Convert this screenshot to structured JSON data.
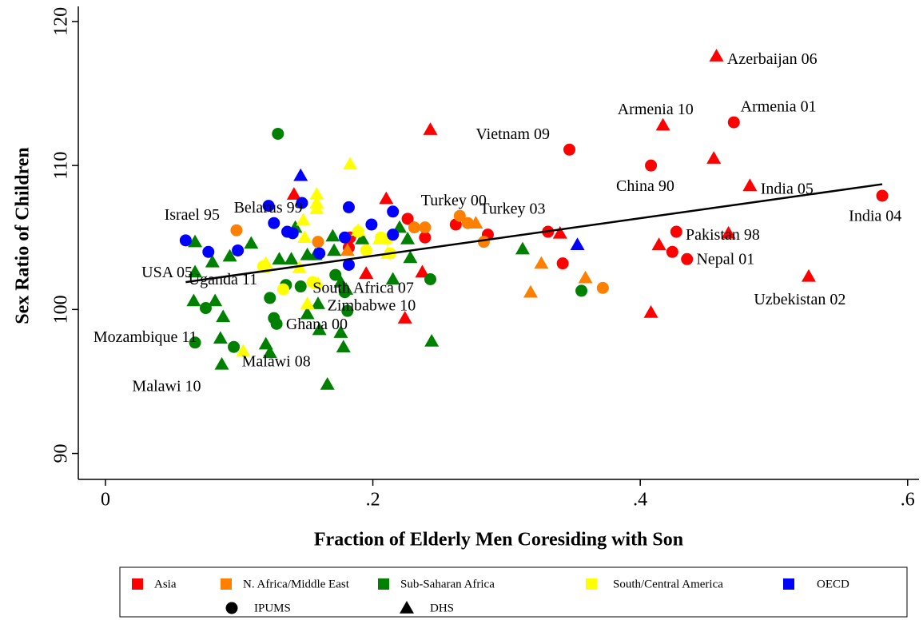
{
  "chart_data": {
    "type": "scatter",
    "xlabel": "Fraction of Elderly Men Coresiding with Son",
    "ylabel": "Sex Ratio of Children",
    "xlim": [
      -0.0203,
      0.6085
    ],
    "ylim": [
      88.2,
      121.05
    ],
    "xticks": [
      0,
      {
        "value": 0.2,
        "label": ".2"
      },
      {
        "value": 0.4,
        "label": ".4"
      },
      {
        "value": 0.6,
        "label": ".6"
      }
    ],
    "yticks": [
      90,
      100,
      110,
      120
    ],
    "markers": [
      {
        "name": "IPUMS",
        "shape": "circle"
      },
      {
        "name": "DHS",
        "shape": "triangle"
      }
    ],
    "series": [
      {
        "name": "Asia",
        "color": "#ff0000",
        "x": [
          0.457,
          0.417,
          0.455,
          0.482,
          0.243,
          0.141,
          0.21,
          0.34,
          0.414,
          0.466,
          0.526,
          0.408,
          0.237,
          0.224,
          0.195,
          0.47,
          0.408,
          0.347,
          0.581,
          0.427,
          0.424,
          0.435,
          0.342,
          0.331,
          0.286,
          0.262,
          0.239,
          0.226,
          0.182,
          0.183
        ],
        "y": [
          117.6,
          112.8,
          110.5,
          108.6,
          112.5,
          108.0,
          107.7,
          105.3,
          104.5,
          105.3,
          102.3,
          99.8,
          102.6,
          99.4,
          102.5,
          113.0,
          110.0,
          111.1,
          107.9,
          105.4,
          104.0,
          103.5,
          103.2,
          105.4,
          105.2,
          105.9,
          105.0,
          106.3,
          104.3,
          105.0
        ],
        "source": [
          "DHS",
          "DHS",
          "DHS",
          "DHS",
          "DHS",
          "DHS",
          "DHS",
          "DHS",
          "DHS",
          "DHS",
          "DHS",
          "DHS",
          "DHS",
          "DHS",
          "DHS",
          "IPUMS",
          "IPUMS",
          "IPUMS",
          "IPUMS",
          "IPUMS",
          "IPUMS",
          "IPUMS",
          "IPUMS",
          "IPUMS",
          "IPUMS",
          "IPUMS",
          "IPUMS",
          "IPUMS",
          "IPUMS",
          "IPUMS"
        ]
      },
      {
        "name": "N. Africa/Middle East",
        "color": "#ff8000",
        "x": [
          0.265,
          0.271,
          0.239,
          0.231,
          0.283,
          0.372,
          0.159,
          0.098,
          0.277,
          0.326,
          0.318,
          0.359,
          0.181
        ],
        "y": [
          106.5,
          106.0,
          105.7,
          105.7,
          104.7,
          101.5,
          104.7,
          105.5,
          106.0,
          103.2,
          101.2,
          102.2,
          104.1
        ],
        "source": [
          "IPUMS",
          "IPUMS",
          "IPUMS",
          "IPUMS",
          "IPUMS",
          "IPUMS",
          "IPUMS",
          "IPUMS",
          "DHS",
          "DHS",
          "DHS",
          "DHS",
          "DHS"
        ]
      },
      {
        "name": "Sub-Saharan Africa",
        "color": "#008000",
        "x": [
          0.129,
          0.067,
          0.075,
          0.096,
          0.123,
          0.126,
          0.128,
          0.135,
          0.146,
          0.172,
          0.181,
          0.179,
          0.243,
          0.356,
          0.067,
          0.067,
          0.066,
          0.08,
          0.082,
          0.088,
          0.086,
          0.087,
          0.093,
          0.109,
          0.12,
          0.123,
          0.13,
          0.139,
          0.151,
          0.151,
          0.157,
          0.159,
          0.16,
          0.142,
          0.17,
          0.171,
          0.176,
          0.176,
          0.178,
          0.18,
          0.166,
          0.192,
          0.215,
          0.22,
          0.226,
          0.228,
          0.244,
          0.312
        ],
        "y": [
          112.2,
          97.7,
          100.1,
          97.4,
          100.8,
          99.4,
          99.0,
          101.7,
          101.6,
          102.4,
          99.9,
          101.2,
          102.1,
          101.3,
          104.7,
          102.6,
          100.6,
          103.3,
          100.6,
          99.5,
          98.0,
          96.2,
          103.7,
          104.6,
          97.6,
          97.0,
          103.5,
          103.5,
          99.7,
          103.8,
          103.8,
          100.4,
          98.6,
          105.7,
          105.1,
          104.1,
          101.9,
          98.4,
          97.4,
          101.4,
          94.8,
          104.9,
          102.1,
          105.7,
          104.9,
          103.6,
          97.8,
          104.2
        ],
        "source": [
          "IPUMS",
          "IPUMS",
          "IPUMS",
          "IPUMS",
          "IPUMS",
          "IPUMS",
          "IPUMS",
          "IPUMS",
          "IPUMS",
          "IPUMS",
          "IPUMS",
          "IPUMS",
          "IPUMS",
          "IPUMS",
          "DHS",
          "DHS",
          "DHS",
          "DHS",
          "DHS",
          "DHS",
          "DHS",
          "DHS",
          "DHS",
          "DHS",
          "DHS",
          "DHS",
          "DHS",
          "DHS",
          "DHS",
          "DHS",
          "DHS",
          "DHS",
          "DHS",
          "DHS",
          "DHS",
          "DHS",
          "DHS",
          "DHS",
          "DHS",
          "DHS",
          "DHS",
          "DHS",
          "DHS",
          "DHS",
          "DHS",
          "DHS",
          "DHS",
          "DHS"
        ]
      },
      {
        "name": "South/Central America",
        "color": "#ffff00",
        "x": [
          0.183,
          0.158,
          0.158,
          0.158,
          0.148,
          0.149,
          0.145,
          0.151,
          0.159,
          0.12,
          0.118,
          0.103,
          0.189,
          0.211,
          0.205,
          0.118,
          0.133,
          0.155,
          0.189,
          0.195,
          0.213,
          0.206,
          0.211
        ],
        "y": [
          110.1,
          108.0,
          107.4,
          107.0,
          106.2,
          105.0,
          102.9,
          100.4,
          101.8,
          103.2,
          102.9,
          97.1,
          105.5,
          103.9,
          104.9,
          103.0,
          101.4,
          101.9,
          105.4,
          104.1,
          103.9,
          105.0,
          104.9
        ],
        "source": [
          "DHS",
          "DHS",
          "DHS",
          "DHS",
          "DHS",
          "DHS",
          "DHS",
          "DHS",
          "DHS",
          "DHS",
          "DHS",
          "DHS",
          "DHS",
          "DHS",
          "DHS",
          "IPUMS",
          "IPUMS",
          "IPUMS",
          "IPUMS",
          "IPUMS",
          "IPUMS",
          "IPUMS",
          "IPUMS"
        ]
      },
      {
        "name": "OECD",
        "color": "#0000ff",
        "x": [
          0.06,
          0.077,
          0.099,
          0.122,
          0.126,
          0.147,
          0.14,
          0.136,
          0.16,
          0.179,
          0.182,
          0.199,
          0.215,
          0.215,
          0.182,
          0.146,
          0.353
        ],
        "y": [
          104.8,
          104.0,
          104.1,
          107.2,
          106.0,
          107.4,
          105.3,
          105.4,
          103.9,
          105.0,
          107.1,
          105.9,
          106.8,
          105.2,
          103.1,
          109.3,
          104.5
        ],
        "source": [
          "IPUMS",
          "IPUMS",
          "IPUMS",
          "IPUMS",
          "IPUMS",
          "IPUMS",
          "IPUMS",
          "IPUMS",
          "IPUMS",
          "IPUMS",
          "IPUMS",
          "IPUMS",
          "IPUMS",
          "IPUMS",
          "IPUMS",
          "DHS",
          "DHS"
        ]
      }
    ],
    "fit_line": {
      "x": [
        0.06,
        0.581
      ],
      "y": [
        101.9,
        108.7
      ]
    },
    "annotations": [
      {
        "text": "Azerbaijan 06",
        "x": 0.465,
        "y": 117.3
      },
      {
        "text": "Armenia 10",
        "x": 0.383,
        "y": 113.8
      },
      {
        "text": "Armenia 01",
        "x": 0.475,
        "y": 114.0
      },
      {
        "text": "Vietnam 09",
        "x": 0.277,
        "y": 112.1
      },
      {
        "text": "China 90",
        "x": 0.382,
        "y": 108.5
      },
      {
        "text": "India 05",
        "x": 0.49,
        "y": 108.3
      },
      {
        "text": "India 04",
        "x": 0.556,
        "y": 106.4
      },
      {
        "text": "Turkey 00",
        "x": 0.236,
        "y": 107.5
      },
      {
        "text": "Turkey 03",
        "x": 0.28,
        "y": 106.9
      },
      {
        "text": "Pakistan 98",
        "x": 0.434,
        "y": 105.1
      },
      {
        "text": "Nepal 01",
        "x": 0.442,
        "y": 103.4
      },
      {
        "text": "Uzbekistan 02",
        "x": 0.485,
        "y": 100.6
      },
      {
        "text": "Israel 95",
        "x": 0.044,
        "y": 106.5
      },
      {
        "text": "Belarus 99",
        "x": 0.096,
        "y": 107.0
      },
      {
        "text": "USA 05",
        "x": 0.027,
        "y": 102.5
      },
      {
        "text": "Uganda 11",
        "x": 0.062,
        "y": 102.0
      },
      {
        "text": "South Africa 07",
        "x": 0.155,
        "y": 101.4
      },
      {
        "text": "Zimbabwe 10",
        "x": 0.166,
        "y": 100.2
      },
      {
        "text": "Ghana 00",
        "x": 0.135,
        "y": 98.9
      },
      {
        "text": "Mozambique 11",
        "x": -0.009,
        "y": 98.0
      },
      {
        "text": "Malawi 08",
        "x": 0.102,
        "y": 96.3
      },
      {
        "text": "Malawi 10",
        "x": 0.02,
        "y": 94.6
      }
    ]
  }
}
